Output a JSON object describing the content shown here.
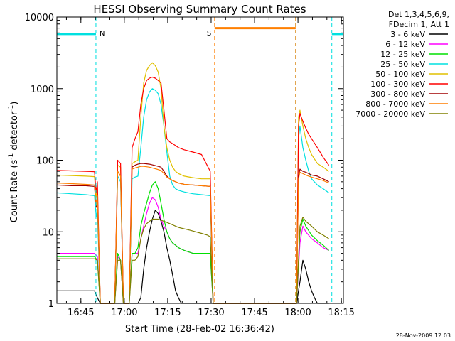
{
  "chart_data": {
    "type": "line",
    "title": "HESSI Observing Summary Count Rates",
    "xlabel": "Start Time (28-Feb-02 16:36:42)",
    "ylabel_main": "Count Rate (s",
    "ylabel_sup1": "-1",
    "ylabel_mid": " detector",
    "ylabel_sup2": "-1",
    "ylabel_end": ")",
    "yscale": "log",
    "xlim_minutes": [
      0,
      99
    ],
    "ylim": [
      1,
      10000
    ],
    "x_ticks": [
      {
        "label": "16:45",
        "min": 8.3
      },
      {
        "label": "17:00",
        "min": 23.3
      },
      {
        "label": "17:15",
        "min": 38.3
      },
      {
        "label": "17:30",
        "min": 53.3
      },
      {
        "label": "17:45",
        "min": 68.3
      },
      {
        "label": "18:00",
        "min": 83.3
      },
      {
        "label": "18:15",
        "min": 98.3
      }
    ],
    "y_ticks": [
      {
        "label": "1",
        "value": 1
      },
      {
        "label": "10",
        "value": 10
      },
      {
        "label": "100",
        "value": 100
      },
      {
        "label": "1000",
        "value": 1000
      },
      {
        "label": "10000",
        "value": 10000
      }
    ],
    "legend_header": [
      "Det 1,3,4,5,6,9,",
      "FDecim 1, Att 1"
    ],
    "legend_position": "right",
    "annotation": "28-Nov-2009 12:03",
    "markers": [
      {
        "label": "N",
        "color": "#00e0e0",
        "value": 5800,
        "segments": [
          [
            0,
            13.5
          ],
          [
            95,
            99
          ]
        ],
        "dashed_at": [
          0,
          13.5,
          82.5,
          95
        ]
      },
      {
        "label": "S",
        "color": "#ff7f00",
        "value": 7000,
        "segments": [
          [
            54.5,
            82.5
          ]
        ],
        "dashed_at": [
          54.5,
          82.5
        ]
      }
    ],
    "series": [
      {
        "name": "3 - 6 keV",
        "color": "#000000",
        "x": [
          0,
          13,
          14,
          15,
          16,
          17,
          18,
          19,
          20,
          21,
          22,
          23,
          24,
          25,
          26,
          27,
          28,
          29,
          30,
          31,
          32,
          33,
          34,
          35,
          36,
          37,
          38,
          39,
          40,
          41,
          42,
          43,
          44,
          45,
          46,
          47,
          48,
          49,
          50,
          51,
          52,
          53,
          54,
          82.8,
          84,
          85,
          86,
          87,
          88,
          89,
          90,
          91,
          92,
          93,
          94
        ],
        "y": [
          1.5,
          1.5,
          1.2,
          1,
          1,
          1,
          1,
          1,
          1,
          1,
          1,
          1,
          1,
          1,
          1,
          1,
          1,
          1.2,
          3,
          6,
          10,
          15,
          20,
          18,
          14,
          10,
          6,
          4,
          2.5,
          1.5,
          1.2,
          1,
          1,
          1,
          1,
          1,
          1,
          1,
          1,
          1,
          1,
          1,
          1,
          1,
          2,
          4,
          3,
          2,
          1.5,
          1.2,
          1,
          1,
          1,
          1,
          1
        ]
      },
      {
        "name": "6 - 12 keV",
        "color": "#ff00ff",
        "x": [
          0,
          13,
          14,
          15,
          19,
          20,
          21,
          22,
          23,
          25,
          26,
          27,
          28,
          29,
          30,
          31,
          32,
          33,
          34,
          35,
          36,
          37,
          38,
          39,
          40,
          41,
          42,
          44,
          47,
          50,
          53,
          54,
          82.8,
          84,
          85,
          86,
          88,
          90,
          92,
          94
        ],
        "y": [
          5,
          5,
          4.5,
          1,
          1,
          1,
          4.5,
          4,
          1,
          1,
          5,
          5,
          5,
          8,
          12,
          18,
          25,
          30,
          28,
          22,
          15,
          12,
          10,
          8,
          7,
          6.5,
          6,
          5.5,
          5,
          5,
          5,
          1,
          1,
          7,
          12,
          10,
          8,
          7,
          6,
          5.5
        ]
      },
      {
        "name": "12 - 25 keV",
        "color": "#00e000",
        "x": [
          0,
          13,
          14,
          15,
          19,
          20,
          21,
          22,
          23,
          25,
          26,
          27,
          28,
          29,
          30,
          31,
          32,
          33,
          34,
          35,
          36,
          37,
          38,
          39,
          40,
          41,
          42,
          44,
          47,
          50,
          53,
          54,
          82.8,
          84,
          85,
          86,
          88,
          90,
          92,
          94
        ],
        "y": [
          4.5,
          4.5,
          4,
          1,
          1,
          1,
          5,
          4,
          1,
          1,
          5,
          5,
          6,
          12,
          18,
          25,
          35,
          45,
          50,
          40,
          25,
          15,
          10,
          8,
          7,
          6.5,
          6,
          5.5,
          5,
          5,
          5,
          1,
          1,
          10,
          15,
          12,
          9,
          7.5,
          6.5,
          5.5
        ]
      },
      {
        "name": "25 - 50 keV",
        "color": "#00e0e0",
        "x": [
          0,
          5,
          10,
          13,
          13.6,
          14,
          15,
          19,
          20,
          21,
          22,
          23,
          25,
          26,
          27,
          28,
          29,
          30,
          31,
          32,
          33,
          34,
          35,
          36,
          37,
          38,
          39,
          40,
          41,
          42,
          44,
          47,
          50,
          53,
          54,
          82.8,
          83.5,
          84,
          85,
          86,
          87,
          88,
          90,
          92,
          94
        ],
        "y": [
          35,
          34,
          33,
          32,
          16,
          20,
          1,
          1,
          1,
          60,
          50,
          1,
          1,
          55,
          58,
          60,
          150,
          400,
          700,
          900,
          1000,
          950,
          850,
          600,
          300,
          130,
          60,
          45,
          40,
          38,
          36,
          34,
          33,
          32,
          1,
          1,
          200,
          300,
          150,
          100,
          70,
          55,
          45,
          40,
          35
        ]
      },
      {
        "name": "50 - 100 keV",
        "color": "#e0c000",
        "x": [
          0,
          5,
          10,
          13,
          13.6,
          14,
          15,
          19,
          20,
          21,
          22,
          23,
          25,
          26,
          27,
          28,
          29,
          30,
          31,
          32,
          33,
          34,
          35,
          36,
          37,
          38,
          39,
          40,
          41,
          42,
          44,
          47,
          50,
          53,
          54,
          82.8,
          83.5,
          84,
          85,
          86,
          87,
          88,
          90,
          92,
          94
        ],
        "y": [
          62,
          61,
          60,
          59,
          30,
          40,
          1,
          1,
          1,
          85,
          80,
          1,
          1,
          90,
          95,
          100,
          400,
          1200,
          1800,
          2100,
          2300,
          2100,
          1700,
          1000,
          300,
          150,
          100,
          80,
          70,
          65,
          60,
          57,
          55,
          55,
          1,
          1,
          400,
          500,
          300,
          200,
          150,
          120,
          90,
          80,
          70
        ]
      },
      {
        "name": "100 - 300 keV",
        "color": "#ff0000",
        "x": [
          0,
          5,
          10,
          13,
          13.6,
          14,
          15,
          19,
          20,
          21,
          22,
          23,
          25,
          26,
          27,
          28,
          29,
          30,
          31,
          32,
          33,
          34,
          35,
          36,
          37,
          38,
          39,
          40,
          41,
          42,
          44,
          47,
          50,
          53,
          54,
          82.8,
          83.5,
          84,
          85,
          86,
          87,
          88,
          90,
          92,
          94
        ],
        "y": [
          72,
          71,
          70,
          69,
          35,
          50,
          1,
          1,
          1,
          100,
          90,
          1,
          1,
          150,
          200,
          250,
          600,
          1000,
          1300,
          1400,
          1450,
          1400,
          1300,
          1200,
          500,
          200,
          180,
          170,
          160,
          150,
          140,
          130,
          120,
          70,
          1,
          1,
          300,
          450,
          350,
          280,
          230,
          200,
          150,
          110,
          85
        ]
      },
      {
        "name": "300 - 800 keV",
        "color": "#a00000",
        "x": [
          0,
          5,
          10,
          13,
          13.6,
          14,
          15,
          19,
          20,
          21,
          22,
          23,
          25,
          26,
          27,
          28,
          29,
          30,
          31,
          32,
          33,
          34,
          35,
          36,
          37,
          38,
          39,
          40,
          41,
          42,
          44,
          47,
          50,
          53,
          54,
          82.8,
          83.5,
          84,
          85,
          86,
          87,
          88,
          90,
          92,
          94
        ],
        "y": [
          45,
          44,
          44,
          43,
          22,
          30,
          1,
          1,
          1,
          70,
          60,
          1,
          1,
          80,
          85,
          88,
          90,
          90,
          89,
          88,
          86,
          84,
          82,
          80,
          70,
          60,
          55,
          52,
          50,
          48,
          46,
          45,
          44,
          43,
          1,
          1,
          60,
          75,
          70,
          68,
          65,
          62,
          60,
          55,
          50
        ]
      },
      {
        "name": "800 - 7000 keV",
        "color": "#ff7f00",
        "x": [
          0,
          5,
          10,
          13,
          13.6,
          14,
          15,
          19,
          20,
          21,
          22,
          23,
          25,
          26,
          27,
          28,
          29,
          30,
          31,
          32,
          33,
          34,
          35,
          36,
          37,
          38,
          39,
          40,
          41,
          42,
          44,
          47,
          50,
          53,
          54,
          82.8,
          83.5,
          84,
          85,
          86,
          87,
          88,
          90,
          92,
          94
        ],
        "y": [
          48,
          47,
          46,
          45,
          24,
          32,
          1,
          1,
          1,
          70,
          60,
          1,
          1,
          75,
          78,
          80,
          82,
          82,
          81,
          80,
          78,
          76,
          74,
          72,
          65,
          58,
          55,
          52,
          50,
          48,
          46,
          45,
          44,
          43,
          1,
          1,
          55,
          68,
          65,
          62,
          60,
          58,
          55,
          52,
          48
        ]
      },
      {
        "name": "7000 - 20000 keV",
        "color": "#808000",
        "x": [
          0,
          13,
          14,
          15,
          19,
          20,
          21,
          22,
          23,
          25,
          26,
          27,
          28,
          29,
          30,
          31,
          32,
          33,
          34,
          35,
          36,
          37,
          38,
          39,
          40,
          41,
          42,
          44,
          46,
          48,
          50,
          52,
          53,
          54,
          82.8,
          84,
          85,
          86,
          88,
          90,
          92,
          94
        ],
        "y": [
          4.2,
          4.2,
          4,
          1,
          1,
          1,
          4,
          4,
          1,
          1,
          4,
          4,
          4.5,
          8,
          11,
          13,
          14,
          15,
          15,
          15,
          14.5,
          14,
          13.5,
          13,
          12.5,
          12,
          11.5,
          11,
          10.5,
          10,
          9.5,
          9,
          8.5,
          1,
          1,
          12,
          16,
          14,
          12,
          10,
          9,
          8
        ]
      }
    ]
  }
}
